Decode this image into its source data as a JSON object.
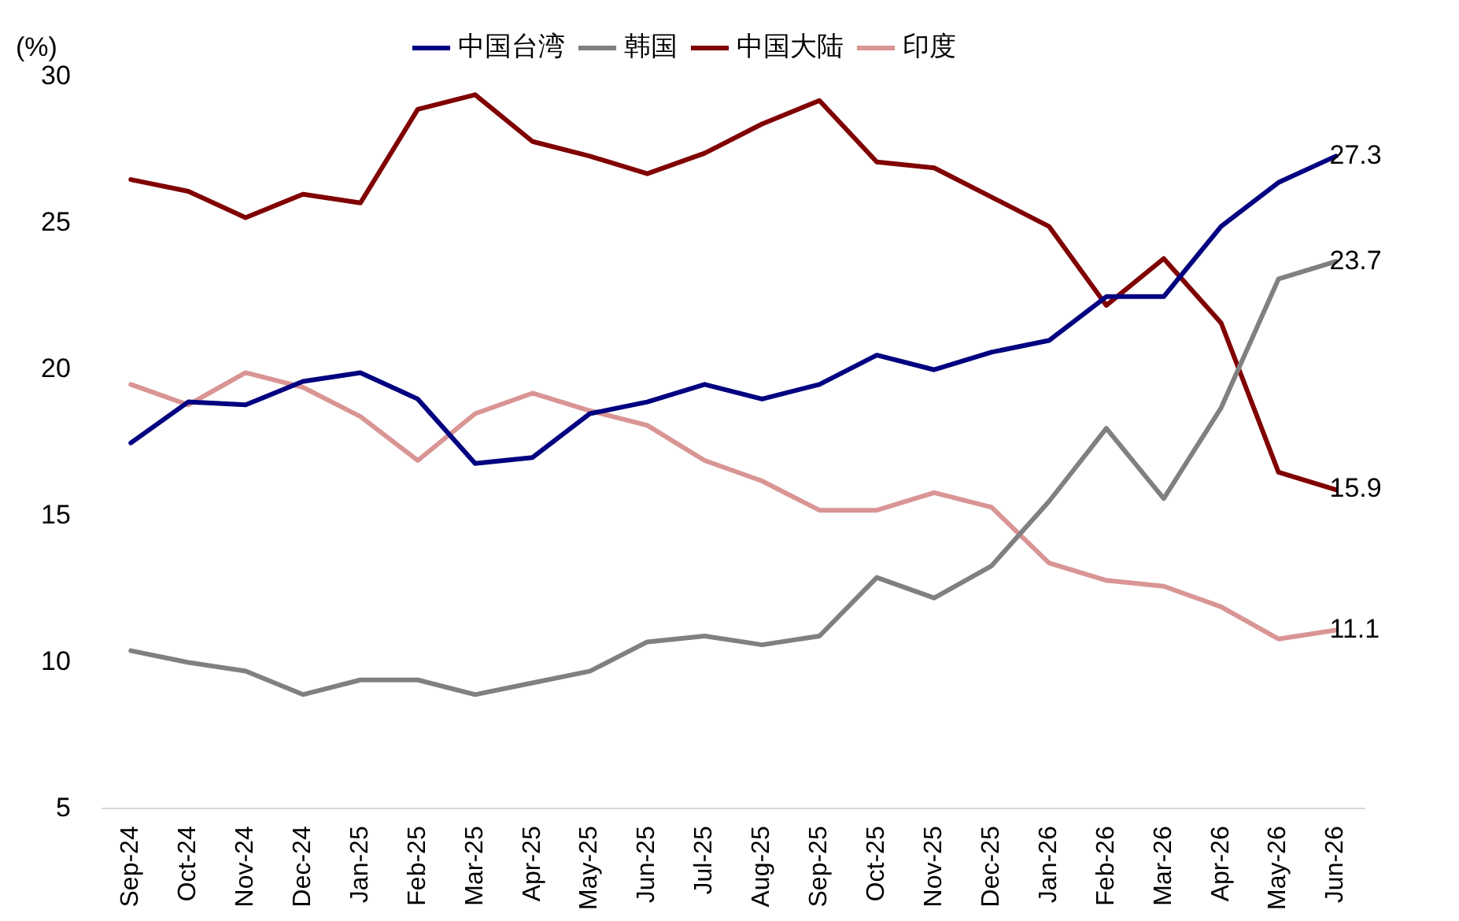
{
  "chart_data": {
    "type": "line",
    "ylabel": "(%)",
    "categories": [
      "Sep-24",
      "Oct-24",
      "Nov-24",
      "Dec-24",
      "Jan-25",
      "Feb-25",
      "Mar-25",
      "Apr-25",
      "May-25",
      "Jun-25",
      "Jul-25",
      "Aug-25",
      "Sep-25",
      "Oct-25",
      "Nov-25",
      "Dec-25",
      "Jan-26",
      "Feb-26",
      "Mar-26",
      "Apr-26",
      "May-26",
      "Jun-26"
    ],
    "series": [
      {
        "name": "中国台湾",
        "color": "#000080",
        "values": [
          17.5,
          18.9,
          18.8,
          19.6,
          19.9,
          19.0,
          16.8,
          17.0,
          18.5,
          18.9,
          19.5,
          19.0,
          19.5,
          20.5,
          20.0,
          20.6,
          21.0,
          22.5,
          22.5,
          24.9,
          26.4,
          27.3
        ]
      },
      {
        "name": "韩国",
        "color": "#808080",
        "values": [
          10.4,
          10.0,
          9.7,
          8.9,
          9.4,
          9.4,
          8.9,
          9.3,
          9.7,
          10.7,
          10.9,
          10.6,
          10.9,
          12.9,
          12.2,
          13.3,
          15.5,
          18.0,
          15.6,
          18.7,
          23.1,
          23.7
        ]
      },
      {
        "name": "中国大陆",
        "color": "#800000",
        "values": [
          26.5,
          26.1,
          25.2,
          26.0,
          25.7,
          28.9,
          29.4,
          27.8,
          27.3,
          26.7,
          27.4,
          28.4,
          29.2,
          27.1,
          26.9,
          25.9,
          24.9,
          22.2,
          23.8,
          21.6,
          16.5,
          15.9
        ]
      },
      {
        "name": "印度",
        "color": "#d99594",
        "values": [
          19.5,
          18.8,
          19.9,
          19.4,
          18.4,
          16.9,
          18.5,
          19.2,
          18.6,
          18.1,
          16.9,
          16.2,
          15.2,
          15.2,
          15.8,
          15.3,
          13.4,
          12.8,
          12.6,
          11.9,
          10.8,
          11.1
        ]
      }
    ],
    "ylim": [
      5,
      30
    ],
    "yticks": [
      5,
      10,
      15,
      20,
      25,
      30
    ],
    "grid": false,
    "legend": "top",
    "marker": "none",
    "line_style": "solid",
    "annotations": [
      {
        "text": "27.3",
        "x": "Jun-26",
        "y": 27.3
      },
      {
        "text": "23.7",
        "x": "Jun-26",
        "y": 23.7
      },
      {
        "text": "15.9",
        "x": "Jun-26",
        "y": 15.9
      },
      {
        "text": "11.1",
        "x": "Jun-26",
        "y": 11.1
      }
    ]
  }
}
